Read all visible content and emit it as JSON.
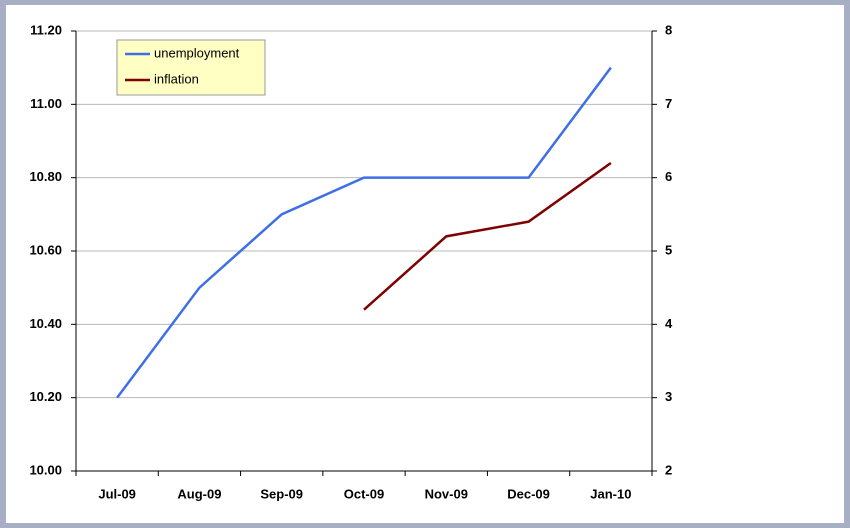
{
  "chart_data": {
    "type": "line",
    "categories": [
      "Jul-09",
      "Aug-09",
      "Sep-09",
      "Oct-09",
      "Nov-09",
      "Dec-09",
      "Jan-10"
    ],
    "series": [
      {
        "name": "unemployment",
        "color": "#3f6fe6",
        "values": [
          10.2,
          10.5,
          10.7,
          10.8,
          10.8,
          10.8,
          11.1
        ]
      },
      {
        "name": "inflation",
        "color": "#7f0000",
        "axis": "y2",
        "values": [
          null,
          null,
          null,
          4.2,
          5.2,
          5.4,
          6.2
        ]
      }
    ],
    "ylim": [
      10,
      11.2
    ],
    "yticks": [
      {
        "value": 10,
        "label": "10.00"
      },
      {
        "value": 10.2,
        "label": "10.20"
      },
      {
        "value": 10.4,
        "label": "10.40"
      },
      {
        "value": 10.6,
        "label": "10.60"
      },
      {
        "value": 10.8,
        "label": "10.80"
      },
      {
        "value": 11,
        "label": "11.00"
      },
      {
        "value": 11.2,
        "label": "11.20"
      }
    ],
    "y2lim": [
      2,
      8
    ],
    "y2ticks": [
      2,
      3,
      4,
      5,
      6,
      7,
      8
    ],
    "grid": true,
    "legend": "upper left"
  }
}
